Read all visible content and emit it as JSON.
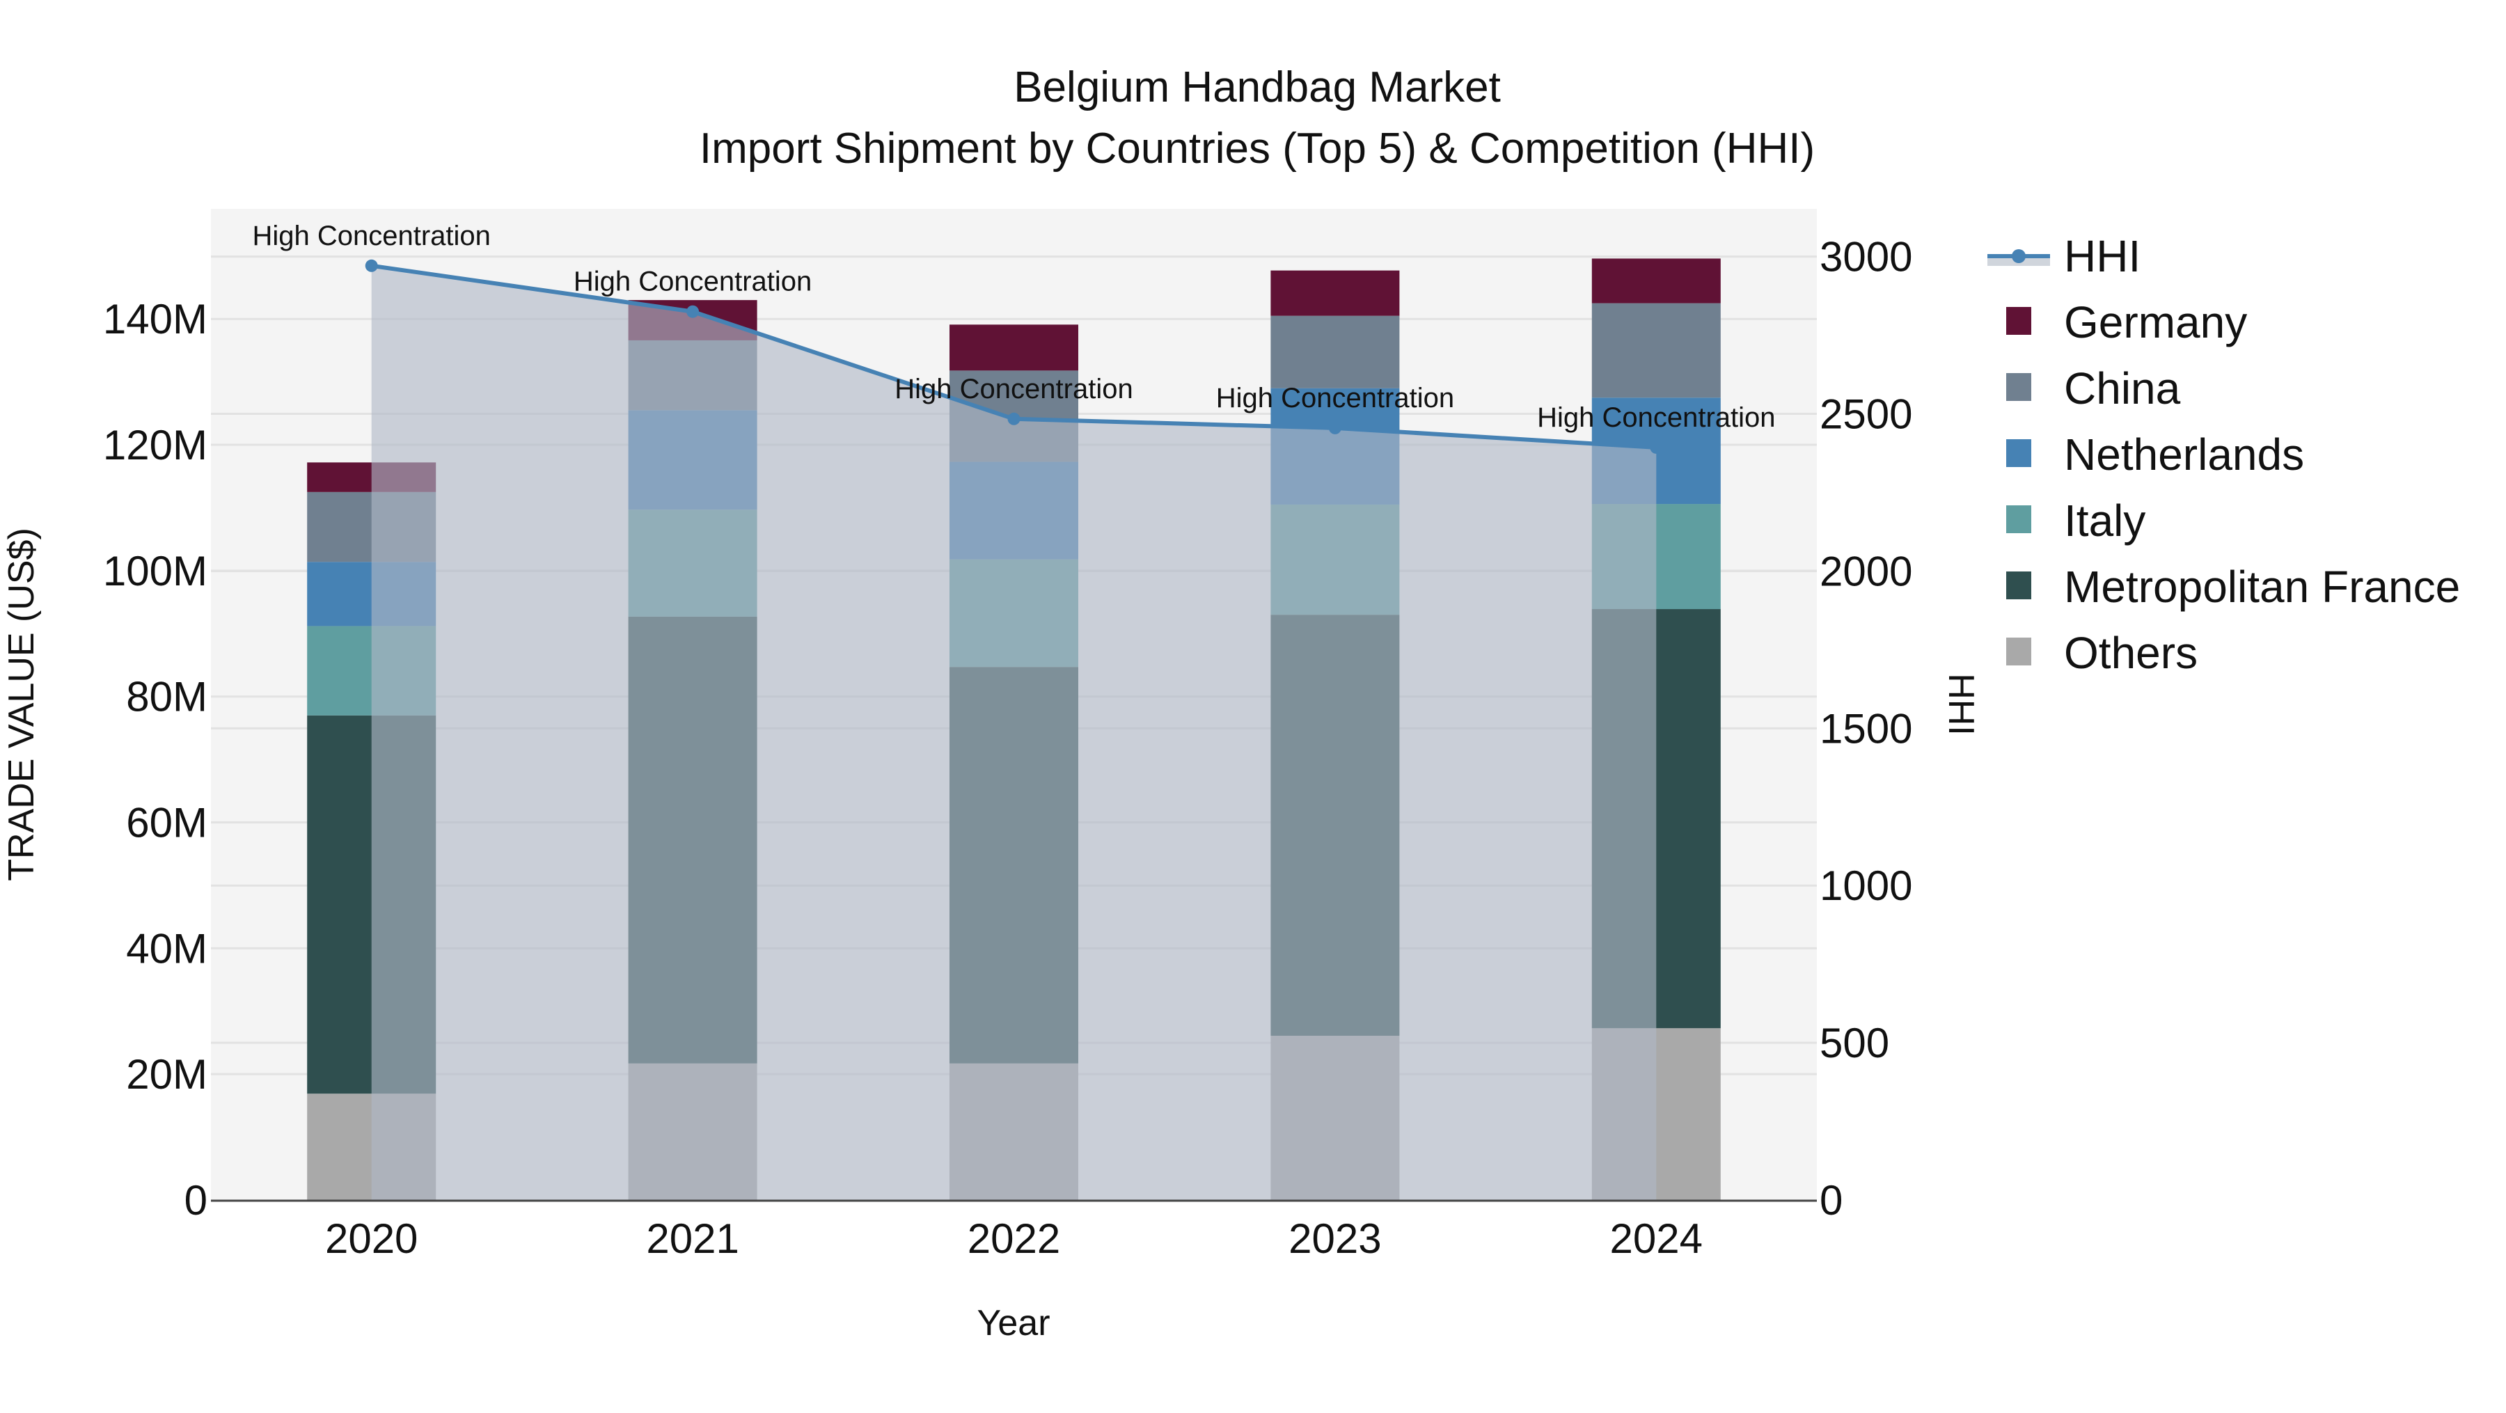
{
  "chart_data": {
    "type": "bar",
    "subtype": "stacked bar with secondary-axis line/area",
    "title": "Belgium Handbag Market",
    "subtitle": "Import Shipment by Countries (Top 5) & Competition (HHI)",
    "xlabel": "Year",
    "ylabel": "TRADE VALUE (US$)",
    "y2label": "HHI",
    "categories": [
      "2020",
      "2021",
      "2022",
      "2023",
      "2024"
    ],
    "ylim": [
      0,
      157.5
    ],
    "y_ticks": [
      0,
      20,
      40,
      60,
      80,
      100,
      120,
      140
    ],
    "y_tick_labels": [
      "0",
      "20M",
      "40M",
      "60M",
      "80M",
      "100M",
      "120M",
      "140M"
    ],
    "y2lim": [
      0,
      3152
    ],
    "y2_ticks": [
      0,
      500,
      1000,
      1500,
      2000,
      2500,
      3000
    ],
    "y2_tick_labels": [
      "0",
      "500",
      "1000",
      "1500",
      "2000",
      "2500",
      "3000"
    ],
    "units": "US$ millions",
    "series": [
      {
        "name": "Others",
        "color": "#a9a9a9",
        "values": [
          16.9,
          21.7,
          21.7,
          26.1,
          27.3
        ]
      },
      {
        "name": "Metropolitan France",
        "color": "#2f4f4f",
        "values": [
          60.1,
          71.0,
          63.0,
          66.9,
          66.6
        ]
      },
      {
        "name": "Italy",
        "color": "#5f9ea0",
        "values": [
          14.2,
          17.0,
          17.1,
          17.5,
          16.7
        ]
      },
      {
        "name": "Netherlands",
        "color": "#4682b4",
        "values": [
          10.2,
          15.8,
          15.5,
          18.5,
          16.9
        ]
      },
      {
        "name": "China",
        "color": "#708090",
        "values": [
          11.1,
          11.1,
          14.5,
          11.5,
          15.0
        ]
      },
      {
        "name": "Germany",
        "color": "#601235",
        "values": [
          4.7,
          6.4,
          7.3,
          7.2,
          7.1
        ]
      }
    ],
    "line_series": {
      "name": "HHI",
      "axis": "y2",
      "color": "#4682b4",
      "fill": "rgba(176,184,198,0.62)",
      "values": [
        2971,
        2825,
        2484,
        2455,
        2393
      ],
      "annotations": [
        "High Concentration",
        "High Concentration",
        "High Concentration",
        "High Concentration",
        "High Concentration"
      ]
    },
    "legend": {
      "position": "right",
      "items": [
        "HHI",
        "Germany",
        "China",
        "Netherlands",
        "Italy",
        "Metropolitan France",
        "Others"
      ]
    },
    "grid": true,
    "plot_bgcolor": "#f4f4f4"
  }
}
